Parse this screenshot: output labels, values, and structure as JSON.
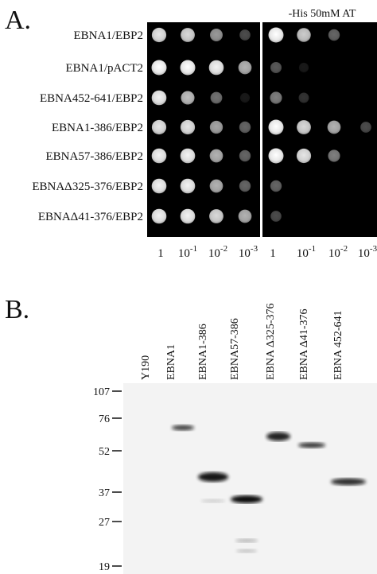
{
  "panel_a": {
    "label": "A.",
    "condition": "-His 50mM AT",
    "rows": [
      "EBNA1/EBP2",
      "EBNA1/pACT2",
      "EBNA452-641/EBP2",
      "EBNA1-386/EBP2",
      "EBNA57-386/EBP2",
      "EBNAΔ325-376/EBP2",
      "EBNAΔ41-376/EBP2"
    ],
    "dilutions": [
      {
        "base": "1"
      },
      {
        "base": "10",
        "exp": "-1"
      },
      {
        "base": "10",
        "exp": "-2"
      },
      {
        "base": "10",
        "exp": "-3"
      }
    ]
  },
  "panel_b": {
    "label": "B.",
    "lanes": [
      "Y190",
      "EBNA1",
      "EBNA1-386",
      "EBNA57-386",
      "EBNA Δ325-376",
      "EBNA Δ41-376",
      "EBNA 452-641"
    ],
    "markers": [
      "107",
      "76",
      "52",
      "37",
      "27",
      "19"
    ]
  }
}
